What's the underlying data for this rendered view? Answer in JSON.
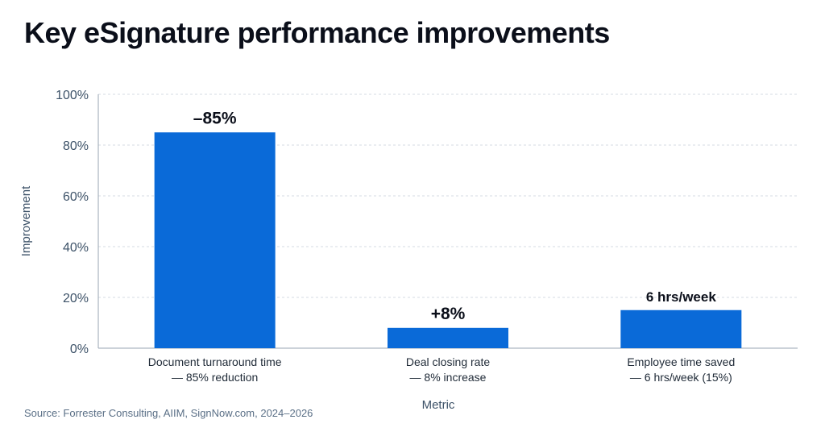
{
  "title": "Key eSignature performance improvements",
  "source": "Source: Forrester Consulting, AIIM, SignNow.com, 2024–2026",
  "colors": {
    "bar": "#0a6ad8",
    "grid": "#d5dbe3",
    "axis": "#9aa6b3"
  },
  "chart_data": {
    "type": "bar",
    "xlabel": "Metric",
    "ylabel": "Improvement",
    "ylim": [
      0,
      100
    ],
    "yticks": [
      "0%",
      "20%",
      "40%",
      "60%",
      "80%",
      "100%"
    ],
    "ytick_values": [
      0,
      20,
      40,
      60,
      80,
      100
    ],
    "grid": true,
    "categories": [
      [
        "Document turnaround time",
        "— 85% reduction"
      ],
      [
        "Deal closing rate",
        "— 8% increase"
      ],
      [
        "Employee time saved",
        "— 6 hrs/week (15%)"
      ]
    ],
    "values": [
      85,
      8,
      15
    ],
    "data_labels": [
      "–85%",
      "+8%",
      "6 hrs/week"
    ]
  }
}
